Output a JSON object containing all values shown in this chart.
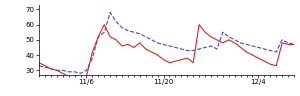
{
  "ylim": [
    27,
    73
  ],
  "yticks": [
    30,
    40,
    50,
    60,
    70
  ],
  "xtick_labels": [
    "11/6",
    "11/20",
    "12/4"
  ],
  "blue_color": "#4444dd",
  "red_color": "#dd2222",
  "blue_y": [
    33,
    32,
    31,
    30,
    30,
    29,
    29,
    28,
    30,
    38,
    52,
    55,
    68,
    62,
    58,
    56,
    55,
    54,
    52,
    50,
    48,
    47,
    46,
    45,
    44,
    43,
    43,
    44,
    45,
    46,
    44,
    55,
    52,
    50,
    48,
    47,
    46,
    45,
    44,
    43,
    42,
    50,
    48,
    47
  ],
  "red_y": [
    35,
    33,
    31,
    30,
    28,
    26,
    24,
    22,
    26,
    42,
    52,
    60,
    52,
    50,
    46,
    47,
    45,
    48,
    44,
    42,
    40,
    37,
    35,
    36,
    37,
    38,
    35,
    60,
    55,
    52,
    50,
    48,
    50,
    48,
    45,
    42,
    40,
    38,
    36,
    34,
    33,
    48,
    47,
    47
  ],
  "xtick_positions": [
    8,
    21,
    37
  ],
  "num_points": 44,
  "figwidth": 3.0,
  "figheight": 0.96,
  "dpi": 100
}
